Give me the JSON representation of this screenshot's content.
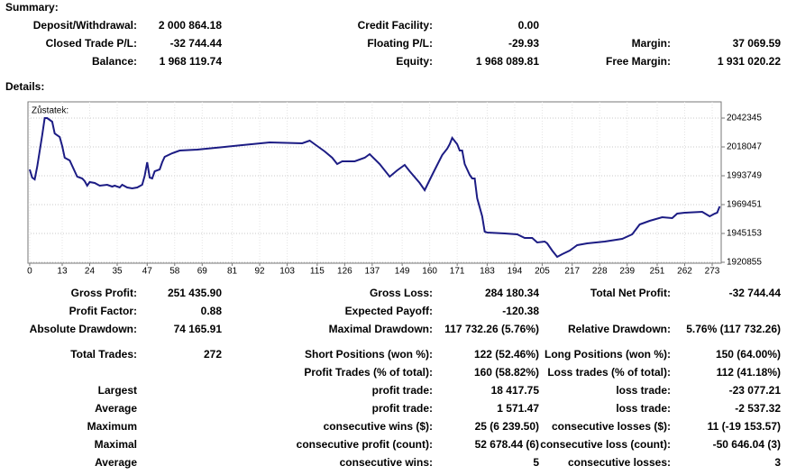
{
  "summary": {
    "heading": "Summary:",
    "rows": [
      [
        {
          "label": "Deposit/Withdrawal:",
          "value": "2 000 864.18"
        },
        {
          "label": "Credit Facility:",
          "value": "0.00"
        },
        null
      ],
      [
        {
          "label": "Closed Trade P/L:",
          "value": "-32 744.44"
        },
        {
          "label": "Floating P/L:",
          "value": "-29.93"
        },
        {
          "label": "Margin:",
          "value": "37 069.59"
        }
      ],
      [
        {
          "label": "Balance:",
          "value": "1 968 119.74"
        },
        {
          "label": "Equity:",
          "value": "1 968 089.81"
        },
        {
          "label": "Free Margin:",
          "value": "1 931 020.22"
        }
      ]
    ]
  },
  "details": {
    "heading": "Details:",
    "rows": [
      [
        {
          "label": "Gross Profit:",
          "value": "251 435.90"
        },
        {
          "label": "Gross Loss:",
          "value": "284 180.34"
        },
        {
          "label": "Total Net Profit:",
          "value": "-32 744.44"
        }
      ],
      [
        {
          "label": "Profit Factor:",
          "value": "0.88"
        },
        {
          "label": "Expected Payoff:",
          "value": "-120.38"
        },
        null
      ],
      [
        {
          "label": "Absolute Drawdown:",
          "value": "74 165.91"
        },
        {
          "label": "Maximal Drawdown:",
          "value": "117 732.26 (5.76%)"
        },
        {
          "label": "Relative Drawdown:",
          "value": "5.76% (117 732.26)"
        }
      ],
      [
        {
          "label": "Total Trades:",
          "value": "272"
        },
        {
          "label": "Short Positions (won %):",
          "value": "122 (52.46%)"
        },
        {
          "label": "Long Positions (won %):",
          "value": "150 (64.00%)"
        }
      ],
      [
        null,
        {
          "label": "Profit Trades (% of total):",
          "value": "160 (58.82%)"
        },
        {
          "label": "Loss trades (% of total):",
          "value": "112 (41.18%)"
        }
      ],
      [
        {
          "label": "Largest"
        },
        {
          "label": "profit trade:",
          "value": "18 417.75"
        },
        {
          "label": "loss trade:",
          "value": "-23 077.21"
        }
      ],
      [
        {
          "label": "Average"
        },
        {
          "label": "profit trade:",
          "value": "1 571.47"
        },
        {
          "label": "loss trade:",
          "value": "-2 537.32"
        }
      ],
      [
        {
          "label": "Maximum"
        },
        {
          "label": "consecutive wins ($):",
          "value": "25 (6 239.50)"
        },
        {
          "label": "consecutive losses ($):",
          "value": "11 (-19 153.57)"
        }
      ],
      [
        {
          "label": "Maximal"
        },
        {
          "label": "consecutive profit (count):",
          "value": "52 678.44 (6)"
        },
        {
          "label": "consecutive loss (count):",
          "value": "-50 646.04 (3)"
        }
      ],
      [
        {
          "label": "Average"
        },
        {
          "label": "consecutive wins:",
          "value": "5"
        },
        {
          "label": "consecutive losses:",
          "value": "3"
        }
      ]
    ]
  },
  "chart_data": {
    "type": "line",
    "title": "Zůstatek:",
    "color": "#1c1c84",
    "grid": true,
    "x": [
      0,
      1,
      2,
      3,
      5,
      6,
      7,
      9,
      10,
      11,
      12,
      13,
      14,
      16,
      18,
      19,
      21,
      22,
      23,
      24,
      26,
      28,
      31,
      33,
      34,
      36,
      37,
      39,
      41,
      43,
      45,
      46,
      47,
      48,
      49,
      50,
      52,
      53,
      54,
      57,
      60,
      67,
      78,
      85,
      96,
      109,
      112,
      114,
      118,
      121,
      123,
      125,
      130,
      134,
      136,
      140,
      144,
      147,
      150,
      152,
      156,
      158,
      161,
      165,
      167,
      168,
      169,
      171,
      172,
      173,
      174,
      176,
      177,
      178,
      179,
      181,
      182,
      183,
      190,
      195,
      198,
      201,
      203,
      206,
      207,
      209,
      211,
      213,
      216,
      219,
      223,
      230,
      237,
      241,
      244,
      248,
      253,
      257,
      259,
      262,
      269,
      272,
      274,
      275,
      276
    ],
    "values": [
      1999063,
      1992229,
      1990711,
      2001341,
      2027916,
      2042343,
      2042343,
      2039306,
      2029435,
      2027916,
      2026398,
      2018805,
      2008934,
      2006656,
      1997544,
      1992989,
      1991470,
      1989192,
      1985396,
      1988433,
      1987673,
      1985396,
      1986155,
      1984636,
      1985396,
      1983877,
      1986155,
      1983877,
      1983118,
      1983877,
      1986155,
      1993748,
      2005137,
      1992229,
      1991470,
      1997544,
      1999063,
      2005137,
      2009693,
      2012730,
      2015008,
      2015768,
      2018045,
      2019564,
      2021842,
      2021083,
      2023361,
      2020323,
      2014249,
      2008934,
      2003619,
      2005897,
      2005897,
      2008934,
      2011971,
      2003619,
      1992989,
      1998304,
      2002859,
      1997544,
      1987673,
      1981599,
      1994507,
      2011212,
      2016527,
      2020323,
      2025638,
      2020323,
      2015008,
      2015008,
      2003619,
      1994507,
      1991470,
      1991470,
      1974765,
      1959579,
      1946671,
      1945912,
      1945153,
      1944393,
      1941356,
      1941356,
      1937560,
      1938319,
      1936800,
      1930726,
      1925411,
      1927689,
      1930726,
      1935282,
      1936800,
      1938319,
      1940597,
      1944393,
      1952746,
      1955783,
      1958820,
      1958061,
      1961857,
      1962617,
      1963376,
      1959579,
      1961857,
      1962617,
      1967932
    ],
    "xlim": [
      -0.7,
      276.6
    ],
    "ylim": [
      1920096,
      2056015
    ],
    "xticks": [
      0,
      13,
      24,
      35,
      47,
      58,
      69,
      81,
      92,
      103,
      115,
      126,
      137,
      149,
      160,
      171,
      183,
      194,
      205,
      217,
      228,
      239,
      251,
      262,
      273
    ],
    "yticks": [
      1920855,
      1945153,
      1969451,
      1993749,
      2018047,
      2042345
    ]
  }
}
